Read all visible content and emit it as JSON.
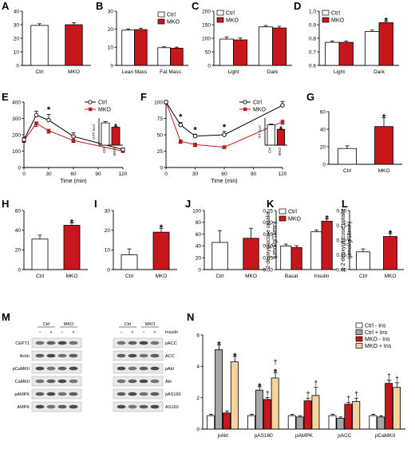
{
  "colors": {
    "ctrl": "#ffffff",
    "mko": "#c8161d",
    "edge": "#000000",
    "ctrl_noins": "#ffffff",
    "ctrl_ins": "#a6a6a6",
    "mko_noins": "#c8161d",
    "mko_ins": "#f6d39c"
  },
  "chart_data": [
    {
      "id": "A",
      "letter": "A",
      "type": "bar",
      "ylabel": "Body weight (g)",
      "ylim": [
        0,
        40
      ],
      "yticks": [
        "0",
        "10",
        "20",
        "30",
        "40"
      ],
      "categories": [
        "Ctrl",
        "MKO"
      ],
      "values": [
        29.5,
        30
      ],
      "errors": [
        1.2,
        1.5
      ],
      "stars": [
        "",
        ""
      ]
    },
    {
      "id": "B",
      "letter": "B",
      "type": "bar",
      "ylabel": "Weight (g)",
      "ylim": [
        0,
        30
      ],
      "yticks": [
        "0",
        "10",
        "20",
        "30"
      ],
      "categories": [
        "Lean Mass",
        "Fat Mass"
      ],
      "series": [
        {
          "name": "Ctrl",
          "values": [
            19.5,
            9.8
          ],
          "errors": [
            0.6,
            0.5
          ]
        },
        {
          "name": "MKO",
          "values": [
            19.8,
            9.5
          ],
          "errors": [
            0.8,
            0.6
          ]
        }
      ],
      "stars": [
        [
          "",
          ""
        ],
        [
          "",
          ""
        ]
      ]
    },
    {
      "id": "C",
      "letter": "C",
      "type": "bar",
      "ylabel": "VO₂ (mL/kg/min)",
      "ylim": [
        0,
        200
      ],
      "yticks": [
        "0",
        "50",
        "100",
        "150",
        "200"
      ],
      "categories": [
        "Light",
        "Dark"
      ],
      "series": [
        {
          "name": "Ctrl",
          "values": [
            97,
            142
          ],
          "errors": [
            8,
            5
          ]
        },
        {
          "name": "MKO",
          "values": [
            94,
            138
          ],
          "errors": [
            7,
            6
          ]
        }
      ],
      "stars": [
        [
          "",
          ""
        ],
        [
          "",
          ""
        ]
      ]
    },
    {
      "id": "D",
      "letter": "D",
      "type": "bar",
      "ylabel": "RQ",
      "ylim": [
        0.6,
        1.0
      ],
      "yticks": [
        "0.6",
        "0.7",
        "0.8",
        "0.9",
        "1.0"
      ],
      "categories": [
        "Light",
        "Dark"
      ],
      "series": [
        {
          "name": "Ctrl",
          "values": [
            0.77,
            0.85
          ],
          "errors": [
            0.01,
            0.01
          ]
        },
        {
          "name": "MKO",
          "values": [
            0.77,
            0.915
          ],
          "errors": [
            0.01,
            0.012
          ]
        }
      ],
      "stars": [
        [
          "",
          ""
        ],
        [
          "",
          "*"
        ]
      ]
    },
    {
      "id": "E",
      "letter": "E",
      "type": "line",
      "ylabel": "Glucose (mg/dL)",
      "xlabel": "Time (min)",
      "ylim": [
        0,
        400
      ],
      "xlim": [
        0,
        120
      ],
      "yticks": [
        "0",
        "100",
        "200",
        "300",
        "400"
      ],
      "xticks": [
        "0",
        "30",
        "60",
        "90",
        "120"
      ],
      "x": [
        0,
        15,
        30,
        60,
        120
      ],
      "series": [
        {
          "name": "Ctrl",
          "values": [
            170,
            320,
            290,
            190,
            110
          ],
          "errors": [
            15,
            25,
            35,
            22,
            10
          ]
        },
        {
          "name": "MKO",
          "values": [
            165,
            270,
            225,
            165,
            100
          ],
          "errors": [
            12,
            20,
            15,
            12,
            8
          ]
        }
      ],
      "star_x": [
        30
      ],
      "star_y": [
        355
      ],
      "inset": {
        "ylabel": "GTT AUC",
        "categories": [
          "Ctrl",
          "MKO"
        ],
        "values": [
          41000,
          33000
        ],
        "errors": [
          2500,
          1800
        ],
        "ylim": [
          0,
          50000
        ],
        "star": "*"
      }
    },
    {
      "id": "F",
      "letter": "F",
      "type": "line",
      "ylabel": "Glucose (% inital)",
      "xlabel": "Time (min)",
      "ylim": [
        0,
        100
      ],
      "xlim": [
        0,
        120
      ],
      "yticks": [
        "0",
        "25",
        "50",
        "75",
        "100"
      ],
      "xticks": [
        "0",
        "30",
        "60",
        "90",
        "120"
      ],
      "x": [
        0,
        15,
        30,
        60,
        120
      ],
      "series": [
        {
          "name": "Ctrl",
          "values": [
            100,
            65,
            48,
            50,
            95
          ],
          "errors": [
            2,
            4,
            3,
            5,
            6
          ]
        },
        {
          "name": "MKO",
          "values": [
            100,
            40,
            35,
            31,
            70
          ],
          "errors": [
            2,
            3,
            3,
            2,
            4
          ]
        }
      ],
      "star_x": [
        15,
        30,
        60
      ],
      "star_y": [
        78,
        58,
        62
      ],
      "inset": {
        "ylabel": "ITT AUC",
        "categories": [
          "Ctrl",
          "MKO"
        ],
        "values": [
          7500,
          5800
        ],
        "errors": [
          300,
          250
        ],
        "ylim": [
          0,
          10000
        ],
        "star": "*"
      }
    },
    {
      "id": "G",
      "letter": "G",
      "type": "bar",
      "ylabel": "GIR (mg/kg/min)",
      "ylim": [
        0,
        60
      ],
      "yticks": [
        "0",
        "20",
        "40",
        "60"
      ],
      "categories": [
        "Ctrl",
        "MKO"
      ],
      "values": [
        18,
        43
      ],
      "errors": [
        3,
        10
      ],
      "stars": [
        "",
        "*"
      ]
    },
    {
      "id": "H",
      "letter": "H",
      "type": "bar",
      "ylabel": "GDR (mg/kg/min)",
      "ylim": [
        0,
        60
      ],
      "yticks": [
        "0",
        "20",
        "40",
        "60"
      ],
      "categories": [
        "Ctrl",
        "MKO"
      ],
      "values": [
        31,
        45
      ],
      "errors": [
        4,
        2.5
      ],
      "stars": [
        "",
        "*"
      ]
    },
    {
      "id": "I",
      "letter": "I",
      "type": "bar",
      "ylabel": "IS-GDR (mg/kg/min)",
      "ylim": [
        0,
        30
      ],
      "yticks": [
        "0",
        "10",
        "20",
        "30"
      ],
      "categories": [
        "Ctrl",
        "MKO"
      ],
      "values": [
        7.5,
        19
      ],
      "errors": [
        3,
        2
      ],
      "stars": [
        "",
        "*"
      ]
    },
    {
      "id": "J",
      "letter": "J",
      "type": "bar",
      "ylabel": "HGP suppression (%)",
      "ylim": [
        0,
        100
      ],
      "yticks": [
        "0",
        "20",
        "40",
        "60",
        "80",
        "100"
      ],
      "categories": [
        "Ctrl",
        "MKO"
      ],
      "values": [
        46,
        53
      ],
      "errors": [
        20,
        17
      ],
      "stars": [
        "",
        ""
      ]
    },
    {
      "id": "K",
      "letter": "K",
      "type": "bar",
      "ylabel": "2-deoxyglucose uptake (μmol/g/15min)",
      "ylim": [
        0,
        0.25
      ],
      "yticks": [
        "0.00",
        "0.05",
        "0.10",
        "0.15",
        "0.20",
        "0.25"
      ],
      "categories": [
        "Basal",
        "Insulin"
      ],
      "series": [
        {
          "name": "Ctrl",
          "values": [
            0.1,
            0.16
          ],
          "errors": [
            0.008,
            0.008
          ]
        },
        {
          "name": "MKO",
          "values": [
            0.093,
            0.205
          ],
          "errors": [
            0.008,
            0.01
          ]
        }
      ],
      "stars": [
        [
          "",
          ""
        ],
        [
          "",
          "*"
        ]
      ]
    },
    {
      "id": "L",
      "letter": "L",
      "type": "bar",
      "ylabel": "Δ-2-deoxyglucose uptake (μmol/g/15min)",
      "ylim": [
        0,
        0.2
      ],
      "yticks": [
        "0.00",
        "0.05",
        "0.10",
        "0.15",
        "0.20"
      ],
      "categories": [
        "Ctrl",
        "MKO"
      ],
      "values": [
        0.06,
        0.112
      ],
      "errors": [
        0.01,
        0.01
      ],
      "stars": [
        "",
        "*"
      ]
    },
    {
      "id": "N",
      "letter": "N",
      "type": "bar",
      "ylabel": "Protein phosphorylation (Relative Units)",
      "ylim": [
        0,
        7
      ],
      "yticks": [
        "0",
        "2",
        "4",
        "6"
      ],
      "categories": [
        "pAkt",
        "pAS160",
        "pAMPK",
        "pACC",
        "pCaMKII"
      ],
      "series": [
        {
          "name": "Ctrl - Ins",
          "values": [
            1,
            1,
            1,
            1,
            1
          ],
          "errors": [
            0.1,
            0.1,
            0.1,
            0.1,
            0.1
          ]
        },
        {
          "name": "Ctrl + Ins",
          "values": [
            5.9,
            2.9,
            0.9,
            0.8,
            0.9
          ],
          "errors": [
            0.35,
            0.25,
            0.1,
            0.1,
            0.1
          ]
        },
        {
          "name": "MKO - Ins",
          "values": [
            1.2,
            2.2,
            2.1,
            1.85,
            3.4
          ],
          "errors": [
            0.15,
            0.15,
            0.2,
            0.15,
            0.25
          ]
        },
        {
          "name": "MKO + Ins",
          "values": [
            5.0,
            3.8,
            2.5,
            2.05,
            3.1
          ],
          "errors": [
            0.4,
            0.4,
            0.6,
            0.25,
            0.35
          ]
        }
      ],
      "marks": [
        [
          "",
          "*",
          "",
          "*"
        ],
        [
          "",
          "*",
          "†",
          "†\n*"
        ],
        [
          "",
          "",
          "†",
          "†"
        ],
        [
          "",
          "",
          "†",
          "†"
        ],
        [
          "",
          "",
          "†",
          "†"
        ]
      ]
    }
  ],
  "blots": {
    "letter": "M",
    "left_header": [
      "Ctrl",
      "MKO"
    ],
    "right_header": [
      "Ctrl",
      "MKO"
    ],
    "signs": [
      "−",
      "+",
      "−",
      "+"
    ],
    "insulin_label": "Insulin",
    "left_rows": [
      "CEPT1",
      "Actin",
      "pCaMKII",
      "CaMKII",
      "pAMPK",
      "AMPK"
    ],
    "right_rows": [
      "pACC",
      "ACC",
      "pAkt",
      "Akt",
      "pAS160",
      "AS160"
    ]
  }
}
